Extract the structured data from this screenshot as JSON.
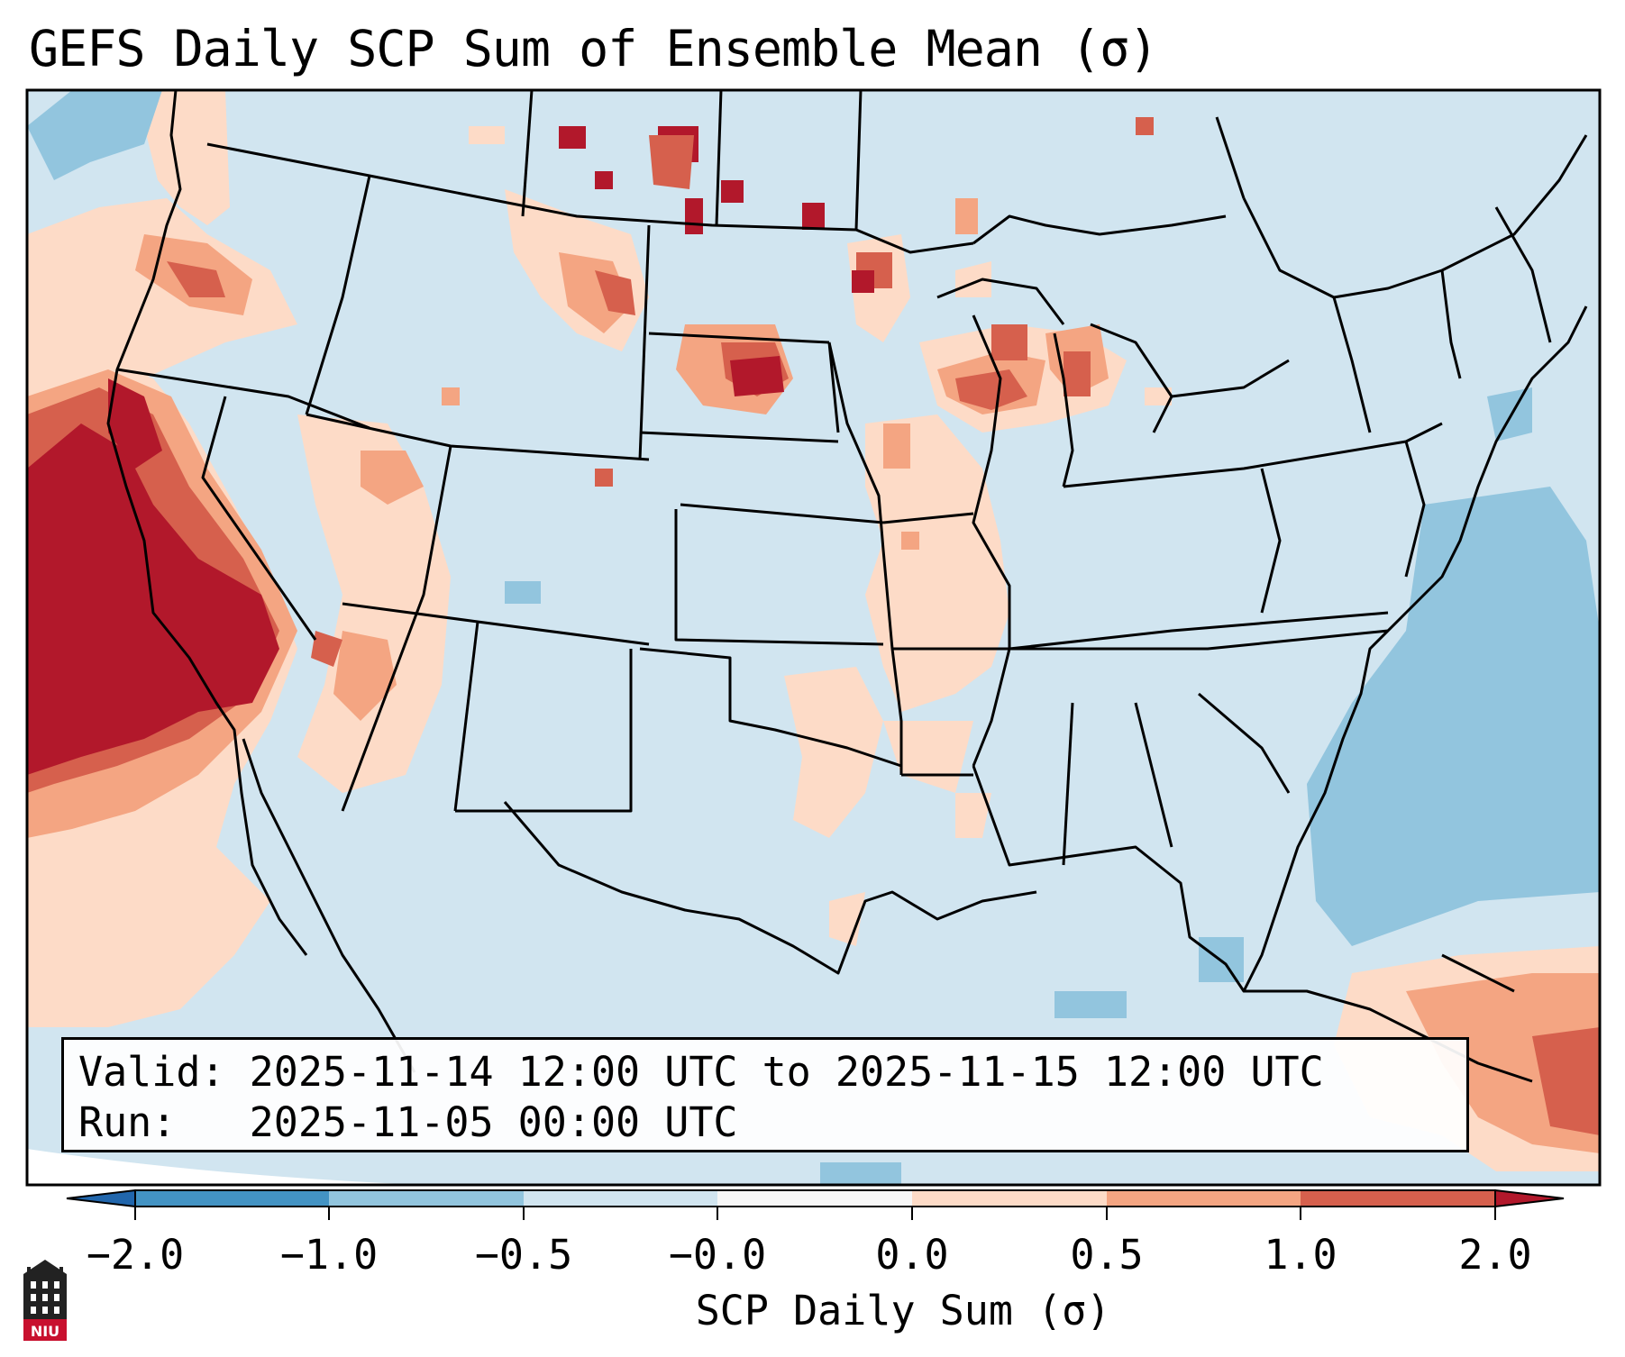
{
  "title": "GEFS Daily SCP Sum of Ensemble Mean (σ)",
  "info": {
    "valid_label": "Valid:",
    "valid_value": "2025-11-14 12:00 UTC to 2025-11-15 12:00 UTC",
    "run_label": "Run:",
    "run_value": "2025-11-05 00:00 UTC"
  },
  "colorbar": {
    "label": "SCP Daily Sum (σ)",
    "ticks": [
      "−2.0",
      "−1.0",
      "−0.5",
      "−0.0",
      "0.0",
      "0.5",
      "1.0",
      "2.0"
    ],
    "bins": [
      {
        "range": "< -2.0",
        "color": "#2166ac"
      },
      {
        "range": "-2.0 to -1.0",
        "color": "#4393c3"
      },
      {
        "range": "-1.0 to -0.5",
        "color": "#92c5de"
      },
      {
        "range": "-0.5 to -0.0",
        "color": "#d1e5f0"
      },
      {
        "range": "-0.0 to 0.0",
        "color": "#f7f7f7"
      },
      {
        "range": "0.0 to 0.5",
        "color": "#fddbc7"
      },
      {
        "range": "0.5 to 1.0",
        "color": "#f4a582"
      },
      {
        "range": "1.0 to 2.0",
        "color": "#d6604d"
      },
      {
        "range": "> 2.0",
        "color": "#b2182b"
      }
    ]
  },
  "logo": {
    "text": "NIU",
    "color": "#c8102e",
    "icon": "niu-building-logo-icon"
  },
  "colors": {
    "frame": "#000000",
    "background": "#d1e5f0"
  }
}
